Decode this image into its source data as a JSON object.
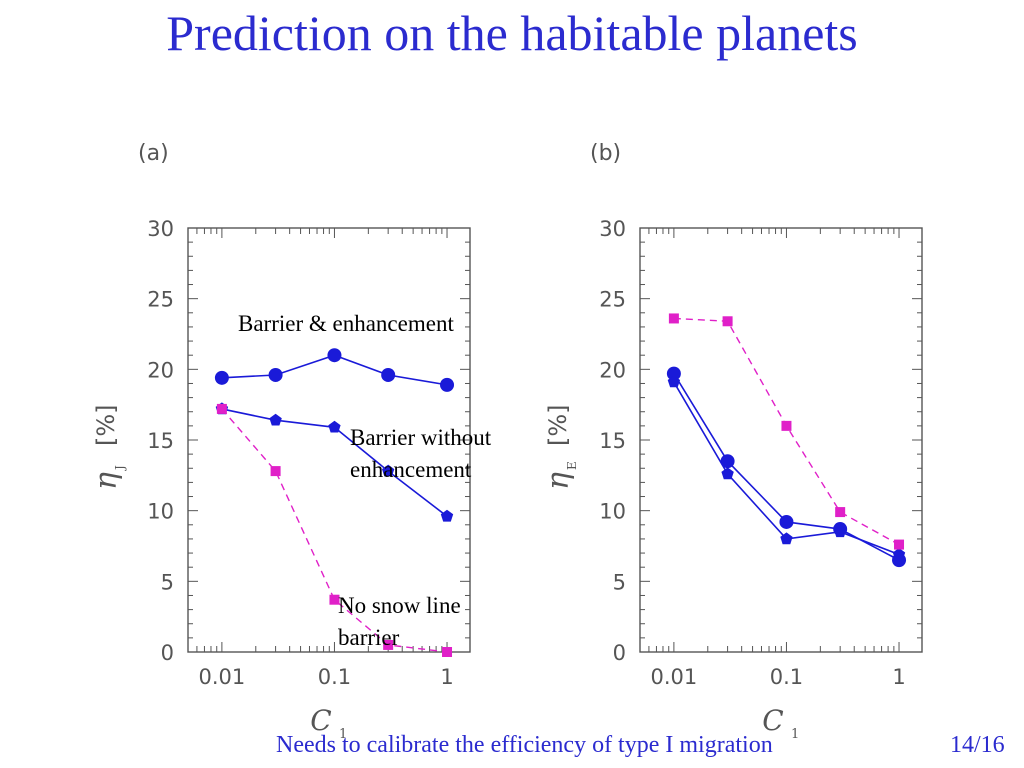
{
  "slide": {
    "title": "Prediction on the habitable planets",
    "footer": "Needs to calibrate the efficiency of type I migration",
    "page": "14/16"
  },
  "colors": {
    "title": "#2b2bcf",
    "barrier_series": "#1a1ad8",
    "no_barrier_series": "#e020c8",
    "axis": "#555555"
  },
  "chart_data": [
    {
      "type": "line",
      "panel_label": "(a)",
      "xscale": "log",
      "xlim": [
        0.005,
        1.6
      ],
      "ylim": [
        0,
        30
      ],
      "x_ticks": [
        0.01,
        0.1,
        1
      ],
      "x_tick_labels": [
        "0.01",
        "0.1",
        "1"
      ],
      "y_ticks": [
        0,
        5,
        10,
        15,
        20,
        25,
        30
      ],
      "y_tick_labels": [
        "0",
        "5",
        "10",
        "15",
        "20",
        "25",
        "30"
      ],
      "xlabel": "C",
      "xlabel_sub": "1",
      "ylabel": "η",
      "ylabel_sub": "J",
      "ylabel_unit": "[%]",
      "x": [
        0.01,
        0.03,
        0.1,
        0.3,
        1
      ],
      "series": [
        {
          "name": "Barrier & enhancement",
          "marker": "circle",
          "line": "solid",
          "color": "#1a1ad8",
          "values": [
            19.4,
            19.6,
            21.0,
            19.6,
            18.9
          ]
        },
        {
          "name": "Barrier without enhancement",
          "marker": "pentagon",
          "line": "solid",
          "color": "#1a1ad8",
          "values": [
            17.2,
            16.4,
            15.9,
            12.8,
            9.6
          ]
        },
        {
          "name": "No snow line barrier",
          "marker": "square",
          "line": "dashed",
          "color": "#e020c8",
          "values": [
            17.2,
            12.8,
            3.7,
            0.5,
            0.0
          ]
        }
      ],
      "annotations": [
        {
          "text": "Barrier & enhancement"
        },
        {
          "text": "Barrier without\nenhancement"
        },
        {
          "text": "No snow line\nbarrier"
        }
      ]
    },
    {
      "type": "line",
      "panel_label": "(b)",
      "xscale": "log",
      "xlim": [
        0.005,
        1.6
      ],
      "ylim": [
        0,
        30
      ],
      "x_ticks": [
        0.01,
        0.1,
        1
      ],
      "x_tick_labels": [
        "0.01",
        "0.1",
        "1"
      ],
      "y_ticks": [
        0,
        5,
        10,
        15,
        20,
        25,
        30
      ],
      "y_tick_labels": [
        "0",
        "5",
        "10",
        "15",
        "20",
        "25",
        "30"
      ],
      "xlabel": "C",
      "xlabel_sub": "1",
      "ylabel": "η",
      "ylabel_sub": "E",
      "ylabel_unit": "[%]",
      "x": [
        0.01,
        0.03,
        0.1,
        0.3,
        1
      ],
      "series": [
        {
          "marker": "circle",
          "line": "solid",
          "color": "#1a1ad8",
          "values": [
            19.7,
            13.5,
            9.2,
            8.7,
            6.5
          ]
        },
        {
          "marker": "pentagon",
          "line": "solid",
          "color": "#1a1ad8",
          "values": [
            19.1,
            12.6,
            8.0,
            8.5,
            6.9
          ]
        },
        {
          "marker": "square",
          "line": "dashed",
          "color": "#e020c8",
          "values": [
            23.6,
            23.4,
            16.0,
            9.9,
            7.6
          ]
        }
      ]
    }
  ]
}
